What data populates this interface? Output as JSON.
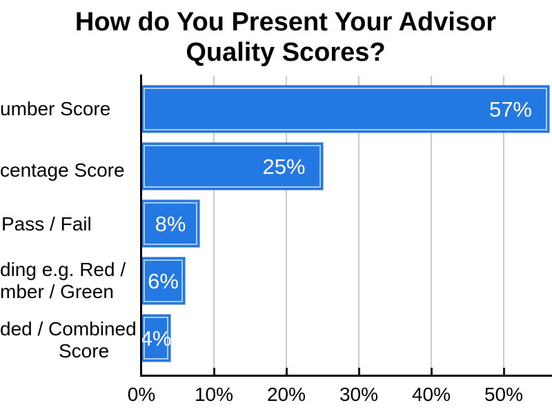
{
  "chart_data": {
    "type": "bar",
    "orientation": "horizontal",
    "title": "How do You Present Your Advisor Quality Scores?",
    "title_lines": [
      "How do You Present Your Advisor",
      "Quality Scores?"
    ],
    "categories": [
      {
        "lines": [
          "umber Score"
        ]
      },
      {
        "lines": [
          "centage Score"
        ]
      },
      {
        "lines": [
          "Pass / Fail"
        ]
      },
      {
        "lines": [
          "ding e.g. Red /",
          "mber / Green"
        ]
      },
      {
        "lines": [
          "ded / Combined",
          "Score"
        ]
      }
    ],
    "values": [
      57,
      25,
      8,
      6,
      4
    ],
    "value_labels": [
      "57%",
      "25%",
      "8%",
      "6%",
      "4%"
    ],
    "x_axis": {
      "tick_labels": [
        "0%",
        "10%",
        "20%",
        "30%",
        "40%",
        "50%"
      ],
      "tick_values": [
        0,
        10,
        20,
        30,
        40,
        50
      ],
      "visible_range_percent": [
        0,
        57
      ]
    },
    "grid": "vertical-gridlines",
    "legend": "none",
    "xlabel": "",
    "ylabel": "",
    "colors": {
      "bar_fill": "#2478e2",
      "bar_inner_stroke": "#a6cbf8",
      "bar_outer_edge": "#2f6fc0",
      "gridline": "#cbcbcb",
      "axis": "#000000",
      "value_text": "#ffffff",
      "title_text": "#000000",
      "label_text": "#000000"
    }
  }
}
